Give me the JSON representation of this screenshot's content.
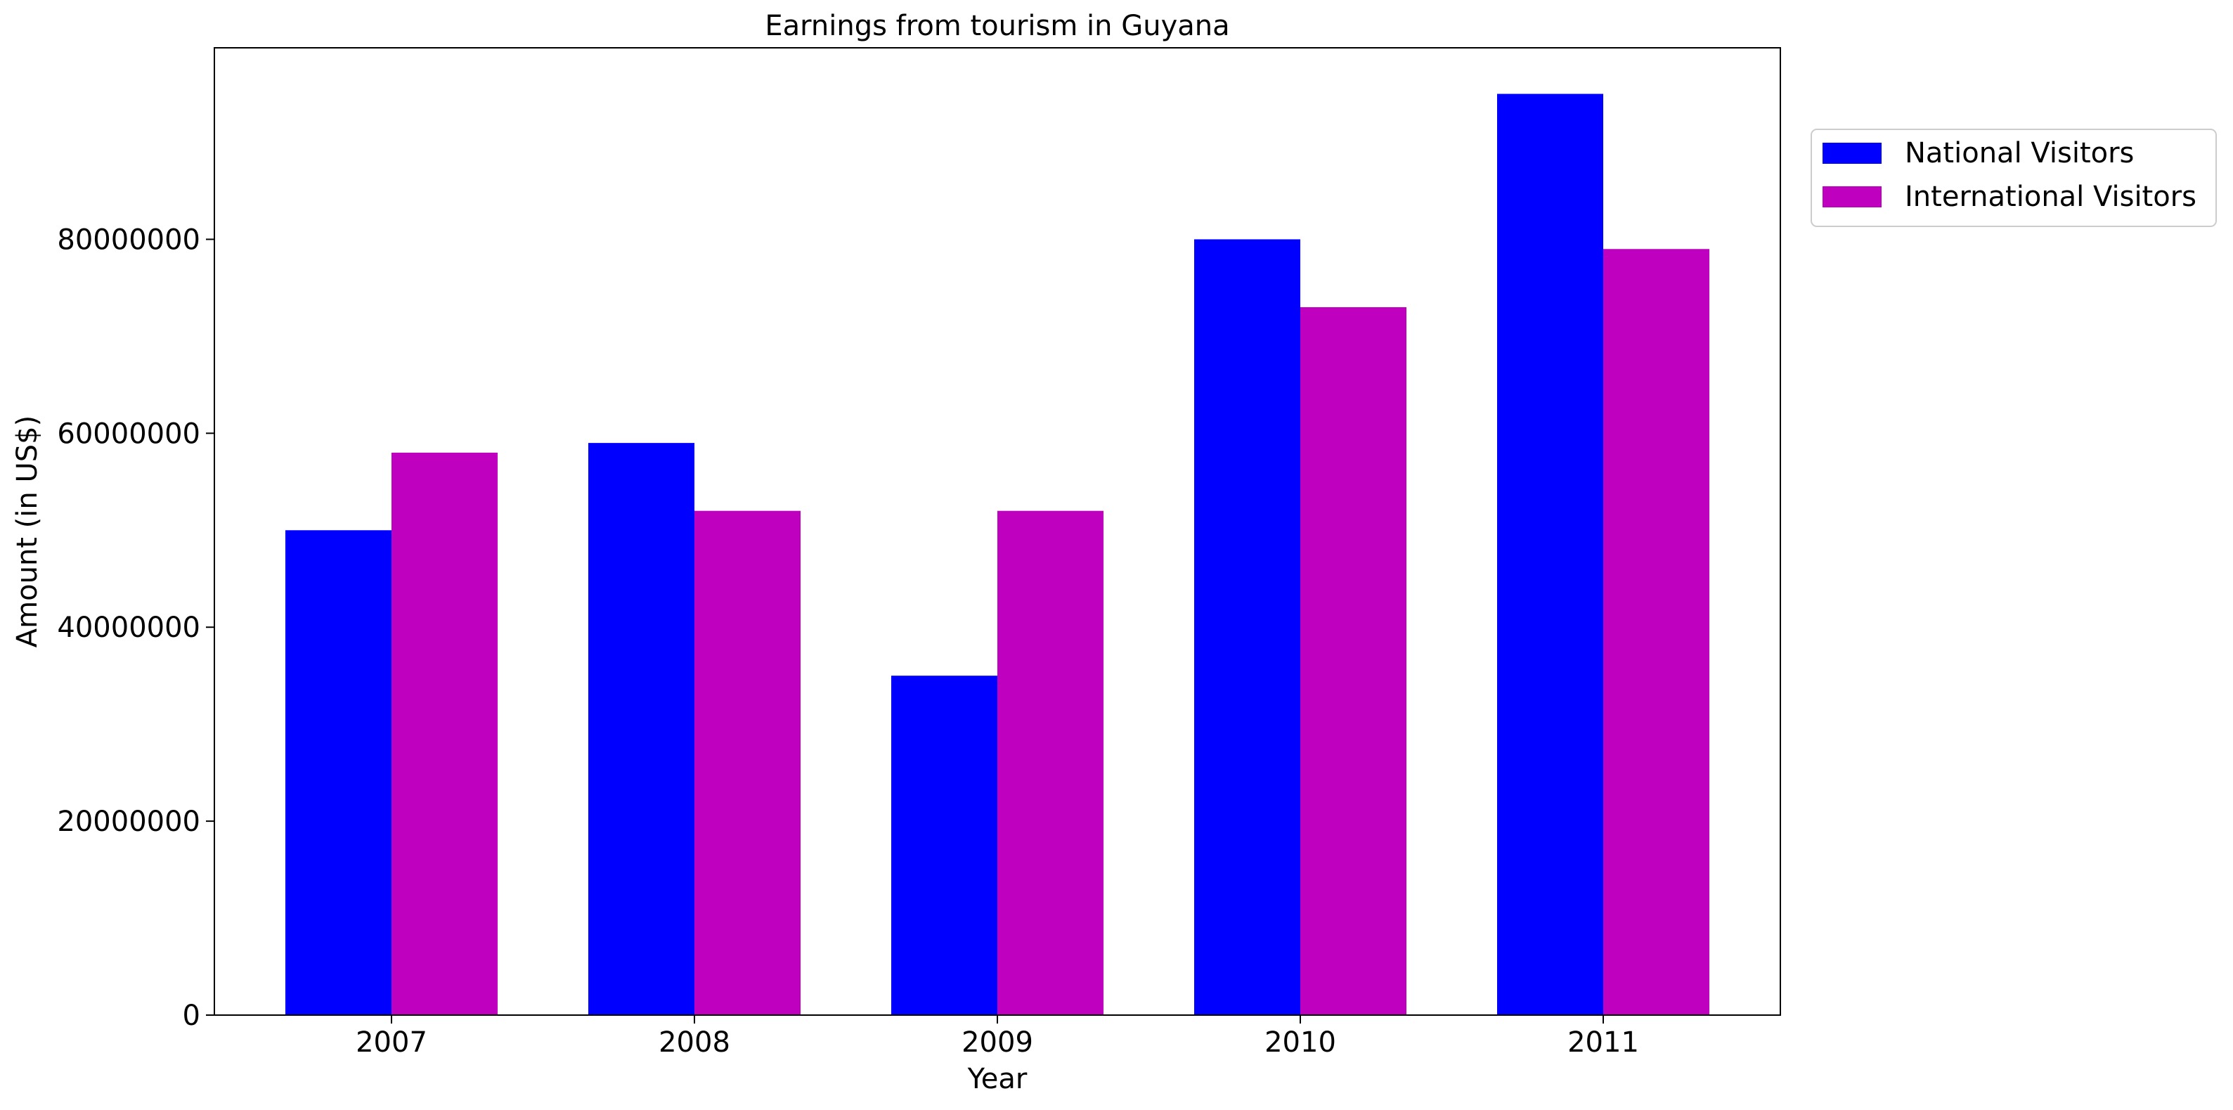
{
  "chart_data": {
    "type": "bar",
    "title": "Earnings from tourism in Guyana",
    "xlabel": "Year",
    "ylabel": "Amount (in US$)",
    "categories": [
      "2007",
      "2008",
      "2009",
      "2010",
      "2011"
    ],
    "series": [
      {
        "name": "National Visitors",
        "color": "#0000ff",
        "values": [
          50000000,
          59000000,
          35000000,
          80000000,
          95000000
        ]
      },
      {
        "name": "International Visitors",
        "color": "#bf00bf",
        "values": [
          58000000,
          52000000,
          52000000,
          73000000,
          79000000
        ]
      }
    ],
    "yticks": [
      "0",
      "20000000",
      "40000000",
      "60000000",
      "80000000"
    ],
    "ylim": [
      0,
      99750000
    ],
    "grid": false,
    "legend_position": "outside-top-right"
  }
}
